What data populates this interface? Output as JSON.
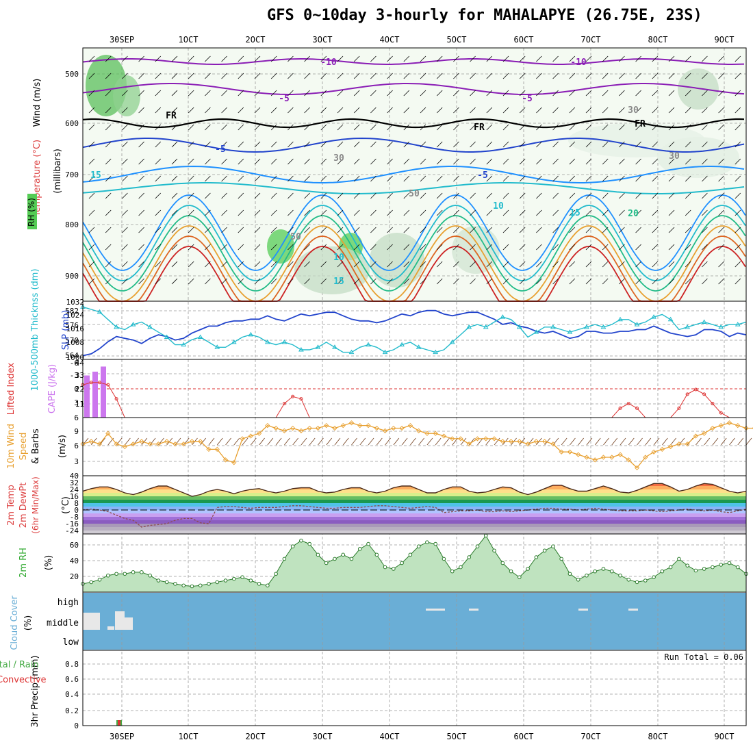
{
  "title": "GFS 0~10day 3-hourly for MAHALAPYE (26.75E, 23S)",
  "date_labels": [
    "30SEP",
    "1OCT",
    "2OCT",
    "3OCT",
    "4OCT",
    "5OCT",
    "6OCT",
    "7OCT",
    "8OCT",
    "9OCT"
  ],
  "colors": {
    "frame": "#000000",
    "grid": "#999999",
    "cloud": "#6aaed6",
    "rh_green": "#55cc55",
    "cape": "#cc77ee",
    "lifted": "#dd3333",
    "slp": "#2244cc",
    "thickness": "#22bbcc",
    "wind10": "#e8a030",
    "barb": "#7a4a2a",
    "dewpt": "#8b4a4a",
    "precip_total": "#44aa44",
    "precip_conv": "#dd3333"
  },
  "panels": {
    "upper": {
      "label_wind": "Wind (m/s)",
      "label_temp": "Temperature (°C)",
      "label_rh": "RH (%)",
      "label_unit": "(millibars)",
      "ticks": [
        "500",
        "600",
        "700",
        "800",
        "900"
      ],
      "contour_labels": [
        "-10",
        "-10",
        "-5",
        "-5",
        "FR",
        "FR",
        "FR",
        "-5",
        "-5",
        "15",
        "10",
        "15",
        "20",
        "10",
        "15",
        "30",
        "30",
        "30",
        "50",
        "50"
      ]
    },
    "slp": {
      "label_slp": "SLP (mb)",
      "label_thick": "1000-500mb Thicknss (dm)",
      "ticks_left": [
        "582",
        "576",
        "570",
        "564"
      ],
      "ticks_right": [
        "1032",
        "1024",
        "1016",
        "1008",
        "1000"
      ]
    },
    "cape": {
      "label_li": "Lifted Index",
      "label_cape": "CAPE (J/kg)",
      "ticks_left": [
        "-6",
        "-3",
        "0",
        "3",
        "6"
      ],
      "ticks_right": [
        "44",
        "33",
        "22",
        "11"
      ]
    },
    "wind10": {
      "label1": "10m Wind",
      "label2": "Speed",
      "label3": "& Barbs",
      "label_unit": "(m/s)",
      "ticks": [
        "9",
        "6",
        "3"
      ]
    },
    "temp2m": {
      "label1": "2m Temp",
      "label2": "2m DewPt",
      "label3": "(6hr Min/Max)",
      "label_unit": "(°C)",
      "ticks": [
        "40",
        "32",
        "24",
        "16",
        "8",
        "0",
        "-8",
        "-16",
        "-24"
      ]
    },
    "rh2m": {
      "label": "2m RH",
      "label_unit": "(%)",
      "ticks": [
        "60",
        "40",
        "20"
      ]
    },
    "cloud": {
      "label": "Cloud Cover",
      "label_unit": "(%)",
      "levels": [
        "high",
        "middle",
        "low"
      ]
    },
    "precip": {
      "label1": "Total / Rain",
      "label2": "Convective",
      "label3": "3hr Precip (mm)",
      "ticks": [
        "0.8",
        "0.6",
        "0.4",
        "0.2",
        "0"
      ],
      "run_total": "Run Total = 0.06"
    }
  },
  "chart_data": [
    {
      "type": "line",
      "name": "slp",
      "ylabel": "SLP (mb)",
      "ylim": [
        1000,
        1032
      ],
      "values": [
        1001,
        1002,
        1005,
        1009,
        1012,
        1011,
        1010,
        1008,
        1011,
        1013,
        1012,
        1010,
        1011,
        1014,
        1016,
        1018,
        1018,
        1020,
        1021,
        1021,
        1022,
        1022,
        1024,
        1022,
        1021,
        1023,
        1025,
        1024,
        1025,
        1026,
        1026,
        1024,
        1022,
        1021,
        1021,
        1020,
        1021,
        1023,
        1025,
        1024,
        1026,
        1027,
        1027,
        1025,
        1024,
        1025,
        1026,
        1026,
        1024,
        1022,
        1019,
        1020,
        1018,
        1017,
        1015,
        1014,
        1015,
        1013,
        1011,
        1012,
        1015,
        1015,
        1014,
        1014,
        1015,
        1015,
        1016,
        1016,
        1018,
        1016,
        1014,
        1013,
        1012,
        1013,
        1016,
        1016,
        1015,
        1012,
        1014,
        1013
      ]
    },
    {
      "type": "line",
      "name": "thickness",
      "ylabel": "1000-500mb Thicknss (dm)",
      "ylim": [
        562,
        584
      ],
      "values": [
        582,
        581,
        580,
        577,
        574,
        573,
        575,
        576,
        574,
        572,
        570,
        567,
        567,
        569,
        570,
        568,
        566,
        566,
        568,
        570,
        571,
        570,
        568,
        567,
        568,
        567,
        565,
        565,
        566,
        568,
        566,
        564,
        564,
        566,
        567,
        566,
        564,
        565,
        567,
        568,
        566,
        565,
        564,
        565,
        568,
        571,
        574,
        575,
        574,
        576,
        578,
        577,
        574,
        570,
        572,
        574,
        574,
        573,
        572,
        573,
        574,
        575,
        574,
        575,
        577,
        577,
        575,
        576,
        578,
        579,
        577,
        573,
        574,
        575,
        576,
        575,
        574,
        575,
        575,
        576
      ]
    },
    {
      "type": "bar",
      "name": "cape",
      "ylabel": "CAPE (J/kg)",
      "ylim": [
        0,
        44
      ],
      "values": [
        33,
        36,
        40
      ]
    },
    {
      "type": "line",
      "name": "lifted_index",
      "ylabel": "Lifted Index",
      "ylim": [
        -6,
        6
      ],
      "values": [
        -1,
        -1.5,
        -1.5,
        -1,
        2,
        6,
        6,
        6,
        6,
        6,
        6,
        6,
        6,
        6,
        6,
        6,
        6,
        6,
        6,
        6,
        6,
        6,
        6,
        6,
        3,
        1.5,
        2,
        6,
        6,
        6,
        6,
        6,
        6,
        6,
        6,
        6,
        6,
        6,
        6,
        6,
        6,
        6,
        6,
        6,
        6,
        6,
        6,
        6,
        6,
        6,
        6,
        6,
        6,
        6,
        6,
        6,
        6,
        6,
        6,
        6,
        6,
        6,
        6,
        6,
        4,
        3,
        4,
        6,
        6,
        6,
        6,
        4,
        1,
        0,
        1,
        3,
        5,
        6,
        6,
        6
      ]
    },
    {
      "type": "line",
      "name": "wind10",
      "ylabel": "10m Wind Speed (m/s)",
      "ylim": [
        0,
        11
      ],
      "values": [
        6,
        6.5,
        6,
        8,
        6,
        5.5,
        6,
        6.5,
        6,
        6,
        6.5,
        6,
        6,
        6.5,
        6.5,
        5,
        5,
        3,
        2.5,
        7,
        7.5,
        8,
        9.5,
        9,
        8.5,
        9,
        8.5,
        9,
        9,
        9.5,
        9,
        9.5,
        10,
        9.5,
        9.5,
        9,
        8.5,
        9,
        9,
        9.5,
        8.5,
        8,
        8,
        7.5,
        7,
        7,
        6,
        7,
        7,
        7,
        6.5,
        6.5,
        6.5,
        6,
        6.5,
        6.5,
        6,
        4.5,
        4.5,
        4,
        3.5,
        3,
        3.5,
        3.5,
        4,
        3,
        1.5,
        3.5,
        4.5,
        5,
        5.5,
        6,
        6,
        7.5,
        8,
        9,
        9.5,
        10,
        9.5,
        9,
        9,
        9.5,
        10.5
      ]
    },
    {
      "type": "line",
      "name": "temp2m",
      "ylabel": "2m Temp (°C)",
      "ylim": [
        -28,
        40
      ],
      "values": [
        22,
        25,
        27,
        27,
        24,
        20,
        18,
        21,
        25,
        28,
        28,
        24,
        20,
        16,
        18,
        22,
        24,
        22,
        19,
        22,
        24,
        25,
        22,
        20,
        22,
        25,
        26,
        26,
        22,
        20,
        21,
        24,
        26,
        26,
        22,
        20,
        22,
        26,
        28,
        28,
        24,
        20,
        20,
        24,
        27,
        27,
        22,
        20,
        21,
        24,
        27,
        26,
        21,
        18,
        21,
        25,
        29,
        29,
        25,
        22,
        22,
        25,
        28,
        25,
        21,
        20,
        23,
        27,
        31,
        31,
        27,
        22,
        24,
        28,
        31,
        30,
        26,
        22,
        20,
        22
      ]
    },
    {
      "type": "line",
      "name": "dewpt2m",
      "ylabel": "2m DewPt (°C)",
      "ylim": [
        -28,
        40
      ],
      "values": [
        0,
        1,
        0,
        -2,
        -6,
        -10,
        -12,
        -20,
        -18,
        -17,
        -16,
        -12,
        -10,
        -10,
        -15,
        -16,
        3,
        4,
        4,
        3,
        2,
        3,
        3,
        3,
        4,
        5,
        5,
        4,
        3,
        2,
        2,
        3,
        3,
        3,
        4,
        5,
        5,
        4,
        3,
        2,
        3,
        4,
        3,
        -3,
        -2,
        -1,
        -1,
        0,
        -2,
        -2,
        -1,
        -2,
        -1,
        0,
        1,
        2,
        2,
        1,
        1,
        0,
        1,
        2,
        1,
        0,
        -1,
        -1,
        -1,
        0,
        -1,
        -2,
        -1,
        0,
        1,
        0,
        -1,
        0,
        -2,
        -3,
        -1,
        1
      ]
    },
    {
      "type": "area",
      "name": "rh2m",
      "ylabel": "2m RH (%)",
      "ylim": [
        0,
        70
      ],
      "values": [
        10,
        12,
        15,
        20,
        22,
        22,
        24,
        24,
        20,
        14,
        12,
        10,
        8,
        7,
        8,
        10,
        12,
        14,
        16,
        18,
        14,
        10,
        8,
        22,
        40,
        55,
        62,
        58,
        45,
        35,
        40,
        45,
        40,
        52,
        58,
        45,
        30,
        28,
        35,
        45,
        55,
        60,
        58,
        40,
        25,
        30,
        42,
        55,
        68,
        50,
        35,
        25,
        18,
        28,
        42,
        50,
        55,
        40,
        22,
        15,
        20,
        25,
        28,
        25,
        20,
        15,
        12,
        14,
        18,
        25,
        30,
        40,
        32,
        26,
        28,
        30,
        33,
        35,
        30,
        22
      ]
    },
    {
      "type": "bar",
      "name": "precip_total",
      "ylabel": "3hr Precip (mm)",
      "ylim": [
        0,
        1
      ],
      "values": [
        0.06
      ]
    }
  ]
}
